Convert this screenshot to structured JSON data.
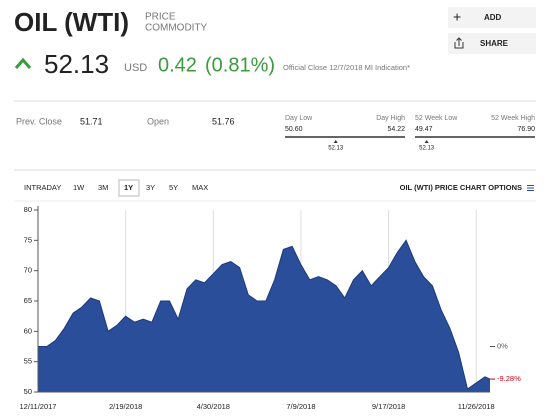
{
  "header": {
    "title": "OIL (WTI)",
    "kind_1": "PRICE",
    "kind_2": "COMMODITY",
    "add": "ADD",
    "share": "SHARE"
  },
  "quote": {
    "price": "52.13",
    "currency": "USD",
    "change": "0.42",
    "change_pct": "(0.81%)",
    "note": "Official Close 12/7/2018 MI Indication*"
  },
  "stats": {
    "prev_close_label": "Prev. Close",
    "prev_close": "51.71",
    "open_label": "Open",
    "open": "51.76",
    "day_range": {
      "low_label": "Day Low",
      "low": "50.60",
      "high_label": "Day High",
      "high": "54.22",
      "marker": "52.13"
    },
    "week52_range": {
      "low_label": "52 Week Low",
      "low": "49.47",
      "high_label": "52 Week High",
      "high": "76.90",
      "marker": "52.13"
    }
  },
  "tabs": {
    "items": [
      "INTRADAY",
      "1W",
      "3M",
      "1Y",
      "3Y",
      "5Y",
      "MAX"
    ],
    "active": "1Y",
    "options": "OIL (WTI) PRICE CHART OPTIONS"
  },
  "chart_data": {
    "type": "area",
    "color": "#2b4e9b",
    "x": [
      "12/11/2017",
      "12/18/2017",
      "12/25/2017",
      "1/1/2018",
      "1/8/2018",
      "1/15/2018",
      "1/22/2018",
      "1/29/2018",
      "2/5/2018",
      "2/12/2018",
      "2/19/2018",
      "2/26/2018",
      "3/5/2018",
      "3/12/2018",
      "3/19/2018",
      "3/26/2018",
      "4/2/2018",
      "4/9/2018",
      "4/16/2018",
      "4/23/2018",
      "4/30/2018",
      "5/7/2018",
      "5/14/2018",
      "5/21/2018",
      "5/28/2018",
      "6/4/2018",
      "6/11/2018",
      "6/18/2018",
      "6/25/2018",
      "7/2/2018",
      "7/9/2018",
      "7/16/2018",
      "7/23/2018",
      "7/30/2018",
      "8/6/2018",
      "8/13/2018",
      "8/20/2018",
      "8/27/2018",
      "9/3/2018",
      "9/10/2018",
      "9/17/2018",
      "9/24/2018",
      "10/1/2018",
      "10/8/2018",
      "10/15/2018",
      "10/22/2018",
      "10/29/2018",
      "11/5/2018",
      "11/12/2018",
      "11/19/2018",
      "11/26/2018",
      "12/3/2018",
      "12/7/2018"
    ],
    "values": [
      57.5,
      57.5,
      58.5,
      60.5,
      63,
      64,
      65.5,
      65,
      60,
      61,
      62.5,
      61.5,
      62,
      61.5,
      65,
      65,
      62,
      67,
      68.5,
      68,
      69.5,
      71,
      71.5,
      70.5,
      66,
      65,
      65,
      68.5,
      73.5,
      74,
      71,
      68.5,
      69,
      68.5,
      67.5,
      65.5,
      68.5,
      70,
      67.5,
      69,
      70.5,
      73,
      75,
      71.5,
      69,
      67.5,
      63.5,
      60.5,
      56.5,
      50.5,
      51.5,
      52.5,
      52.13
    ],
    "xlim": [
      "12/11/2017",
      "12/7/2018"
    ],
    "xticks": [
      "12/11/2017",
      "2/19/2018",
      "4/30/2018",
      "7/9/2018",
      "9/17/2018",
      "11/26/2018"
    ],
    "ylim": [
      50,
      80
    ],
    "yticks": [
      50,
      55,
      60,
      65,
      70,
      75,
      80
    ],
    "grid": true,
    "annotations": [
      {
        "text": "0%",
        "y": 57.5,
        "color": "#555555"
      },
      {
        "text": "-9.28%",
        "y": 52.13,
        "color": "#d0021b"
      }
    ]
  }
}
